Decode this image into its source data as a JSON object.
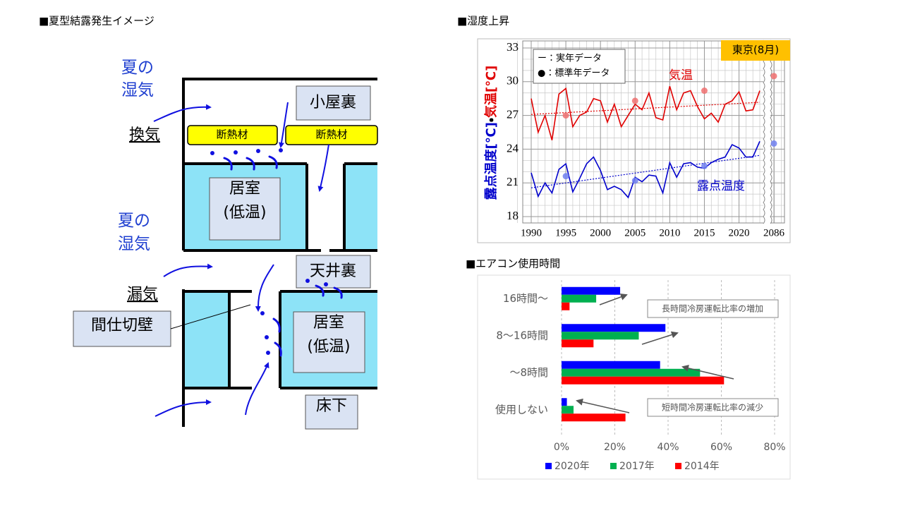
{
  "diagram": {
    "title": "■夏型結露発生イメージ",
    "summer_humidity_top": [
      "夏の",
      "湿気"
    ],
    "summer_humidity_mid": [
      "夏の",
      "湿気"
    ],
    "ventilation": "換気",
    "leakage": "漏気",
    "attic": "小屋裏",
    "insulation_left": "断熱材",
    "insulation_right": "断熱材",
    "room_upper": [
      "居室",
      "(低温)"
    ],
    "ceiling_space": "天井裏",
    "room_lower": [
      "居室",
      "(低温)"
    ],
    "underfloor": "床下",
    "partition_wall": "間仕切壁"
  },
  "chart_data": [
    {
      "type": "line",
      "title": "■湿度上昇",
      "ylabel": [
        "露点温度[℃]",
        "・",
        "気温[℃]"
      ],
      "ylabel_colors": [
        "#0000cc",
        "#000000",
        "#e00000"
      ],
      "badge": "東京(8月)",
      "legend": [
        "ー：実年データ",
        "●：標準年データ"
      ],
      "x": [
        1990,
        1991,
        1992,
        1993,
        1994,
        1995,
        1996,
        1997,
        1998,
        1999,
        2000,
        2001,
        2002,
        2003,
        2004,
        2005,
        2006,
        2007,
        2008,
        2009,
        2010,
        2011,
        2012,
        2013,
        2014,
        2015,
        2016,
        2017,
        2018,
        2019,
        2020,
        2021,
        2022,
        2023
      ],
      "series": [
        {
          "name": "気温",
          "color": "#e00000",
          "values": [
            28.5,
            25.5,
            27.0,
            24.8,
            28.9,
            29.4,
            26.0,
            27.0,
            27.3,
            28.5,
            28.3,
            26.4,
            28.0,
            26.0,
            27.0,
            28.0,
            27.5,
            29.0,
            26.8,
            26.6,
            29.6,
            27.5,
            29.0,
            29.2,
            27.8,
            26.7,
            27.2,
            26.4,
            28.0,
            28.3,
            29.1,
            27.4,
            27.5,
            29.2
          ]
        },
        {
          "name": "露点温度",
          "color": "#0000cc",
          "values": [
            21.9,
            19.8,
            21.0,
            20.1,
            22.2,
            22.7,
            20.2,
            21.4,
            22.7,
            23.3,
            22.1,
            20.4,
            20.7,
            20.4,
            19.7,
            21.5,
            21.1,
            21.7,
            21.6,
            20.1,
            22.8,
            21.5,
            22.7,
            22.8,
            22.4,
            22.3,
            22.8,
            23.1,
            23.3,
            24.4,
            24.1,
            23.3,
            23.3,
            24.7
          ]
        }
      ],
      "standard_year": {
        "x": [
          1995,
          2005,
          2015,
          2086
        ],
        "series": [
          {
            "color": "#f07070",
            "values": [
              27.0,
              28.3,
              29.2,
              30.5
            ]
          },
          {
            "color": "#7080f0",
            "values": [
              21.6,
              21.2,
              22.5,
              24.5
            ]
          }
        ]
      },
      "xlim": [
        1990,
        2086
      ],
      "x_break": [
        2023,
        2086
      ],
      "xticks": [
        1990,
        1995,
        2000,
        2005,
        2010,
        2015,
        2020,
        2086
      ],
      "ylim": [
        18,
        33
      ],
      "yticks": [
        18,
        21,
        24,
        27,
        30,
        33
      ],
      "grid": true,
      "trendline": true
    },
    {
      "type": "hbar",
      "title": "■エアコン使用時間",
      "categories": [
        "16時間～",
        "8～16時間",
        "～8時間",
        "使用しない"
      ],
      "series": [
        {
          "name": "2020年",
          "color": "#0000ff",
          "values": [
            22,
            39,
            37,
            2
          ]
        },
        {
          "name": "2017年",
          "color": "#00b050",
          "values": [
            13,
            29,
            52,
            4.5
          ]
        },
        {
          "name": "2014年",
          "color": "#ff0000",
          "values": [
            3,
            12,
            61,
            24
          ]
        }
      ],
      "xlim": [
        0,
        80
      ],
      "xticks": [
        {
          "value": 0,
          "label": "0%"
        },
        {
          "value": 20,
          "label": "20%"
        },
        {
          "value": 40,
          "label": "40%"
        },
        {
          "value": 60,
          "label": "60%"
        },
        {
          "value": 80,
          "label": "80%"
        }
      ],
      "annotations": [
        "長時間冷房運転比率の増加",
        "短時間冷房運転比率の減少"
      ],
      "grid": true,
      "legend": "bottom"
    }
  ]
}
